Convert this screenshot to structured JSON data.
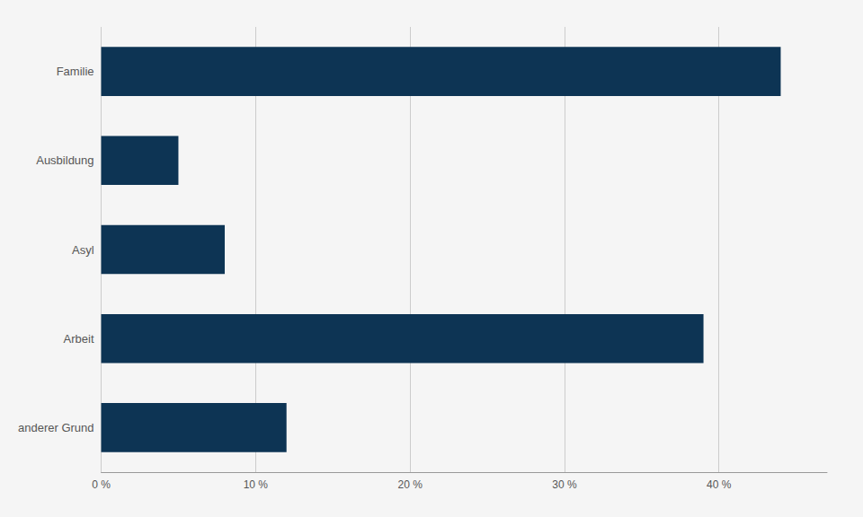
{
  "chart_data": {
    "type": "bar",
    "orientation": "horizontal",
    "categories": [
      "Familie",
      "Ausbildung",
      "Asyl",
      "Arbeit",
      "anderer Grund"
    ],
    "values": [
      44,
      5,
      8,
      39,
      12
    ],
    "color": "#0d3454",
    "xlim": [
      0,
      47
    ],
    "xticks": [
      {
        "value": 0,
        "label": "0 %"
      },
      {
        "value": 10,
        "label": "10 %"
      },
      {
        "value": 20,
        "label": "20 %"
      },
      {
        "value": 30,
        "label": "30 %"
      },
      {
        "value": 40,
        "label": "40 %"
      }
    ],
    "grid": true
  }
}
